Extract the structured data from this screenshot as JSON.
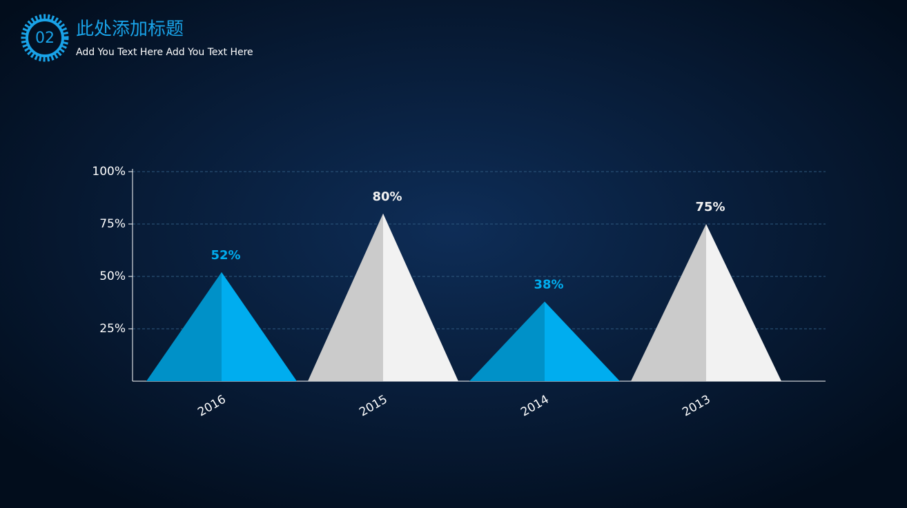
{
  "header": {
    "number": "02",
    "title": "此处添加标题",
    "subtitle": "Add You Text Here Add You Text Here"
  },
  "chart_data": {
    "type": "pyramid",
    "categories": [
      "2016",
      "2015",
      "2014",
      "2013"
    ],
    "values": [
      52,
      80,
      38,
      75
    ],
    "value_labels": [
      "52%",
      "80%",
      "38%",
      "75%"
    ],
    "colors": [
      "#00adef",
      "#f2f2f2",
      "#00adef",
      "#f2f2f2"
    ],
    "ylim": [
      0,
      100
    ],
    "yticks": [
      {
        "value": 25,
        "label": "25%"
      },
      {
        "value": 50,
        "label": "50%"
      },
      {
        "value": 75,
        "label": "75%"
      },
      {
        "value": 100,
        "label": "100%"
      }
    ],
    "grid": true
  }
}
